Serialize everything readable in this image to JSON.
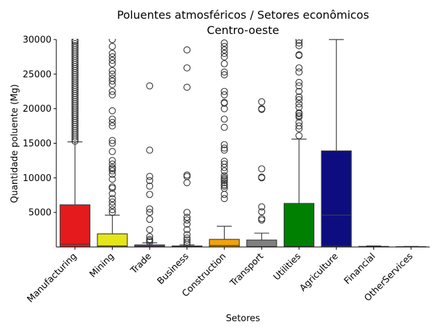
{
  "chart_data": {
    "type": "box",
    "title": "Poluentes atmosféricos / Setores econômicos",
    "subtitle": "Centro-oeste",
    "xlabel": "Setores",
    "ylabel": "Quantidade poluente (Mg)",
    "ylim": [
      0,
      30000
    ],
    "yticks": [
      5000,
      10000,
      15000,
      20000,
      25000,
      30000
    ],
    "grid": false,
    "categories": [
      "Manufacturing",
      "Mining",
      "Trade",
      "Business",
      "Construction",
      "Transport",
      "Utilities",
      "Agriculture",
      "Financial",
      "OtherServices"
    ],
    "boxes": [
      {
        "category": "Manufacturing",
        "color": "#e41a1c",
        "q1": 0,
        "median": 400,
        "q3": 6100,
        "whisker_low": 0,
        "whisker_high": 15200,
        "outliers": [
          15300,
          15600,
          15900,
          16200,
          16500,
          16800,
          17100,
          17400,
          17700,
          18000,
          18300,
          18600,
          18900,
          19200,
          19500,
          19800,
          20100,
          20400,
          20700,
          21000,
          21300,
          21600,
          21900,
          22200,
          22500,
          22800,
          23100,
          23400,
          23700,
          24000,
          24300,
          24600,
          24900,
          25200,
          25500,
          25800,
          26100,
          26400,
          26700,
          27000,
          27300,
          27600,
          27900,
          28200,
          28500,
          28800,
          29100,
          29400,
          29700,
          29900
        ]
      },
      {
        "category": "Mining",
        "color": "#e5e51a",
        "q1": 0,
        "median": 150,
        "q3": 1900,
        "whisker_low": 0,
        "whisker_high": 4600,
        "outliers": [
          5000,
          5400,
          6000,
          6500,
          7000,
          7700,
          8500,
          8700,
          9800,
          10500,
          11000,
          11300,
          11500,
          12000,
          12500,
          13800,
          15000,
          15400,
          17500,
          18000,
          18500,
          19700,
          22000,
          22500,
          23500,
          24000,
          24400,
          25000,
          25500,
          26500,
          27000,
          27500,
          28000,
          29000,
          30000
        ]
      },
      {
        "category": "Trade",
        "color": "#a01bc2",
        "q1": 0,
        "median": 100,
        "q3": 300,
        "whisker_low": 0,
        "whisker_high": 600,
        "outliers": [
          700,
          900,
          1100,
          1500,
          2500,
          4000,
          5000,
          5500,
          7600,
          8800,
          9600,
          10200,
          14000,
          23300
        ]
      },
      {
        "category": "Business",
        "color": "#1f1f7a",
        "q1": 0,
        "median": 50,
        "q3": 150,
        "whisker_low": 0,
        "whisker_high": 300,
        "outliers": [
          400,
          700,
          1000,
          1300,
          1800,
          2500,
          3300,
          3900,
          4300,
          5000,
          9300,
          10200,
          10400,
          23100,
          25900,
          28500
        ]
      },
      {
        "category": "Construction",
        "color": "#f0a30a",
        "q1": 0,
        "median": 200,
        "q3": 1100,
        "whisker_low": 0,
        "whisker_high": 3000,
        "outliers": [
          7000,
          7600,
          8500,
          8800,
          9000,
          9300,
          9600,
          9800,
          10000,
          10300,
          11000,
          11500,
          12000,
          12400,
          14000,
          14300,
          14800,
          17300,
          18500,
          20000,
          20800,
          20900,
          22000,
          22500,
          24900,
          25300,
          26500,
          27500,
          28000,
          28500,
          29000,
          29500
        ]
      },
      {
        "category": "Transport",
        "color": "#808080",
        "q1": 0,
        "median": 50,
        "q3": 1000,
        "whisker_low": 0,
        "whisker_high": 2000,
        "outliers": [
          3900,
          4100,
          5100,
          5800,
          10000,
          10100,
          11300,
          19900,
          20000,
          21000
        ]
      },
      {
        "category": "Utilities",
        "color": "#008000",
        "q1": 0,
        "median": 100,
        "q3": 6300,
        "whisker_low": 0,
        "whisker_high": 15600,
        "outliers": [
          16100,
          17100,
          17500,
          18000,
          18800,
          19000,
          19300,
          19400,
          20200,
          20700,
          21300,
          21700,
          22500,
          23300,
          23800,
          25300,
          25900,
          27700,
          27800,
          29100,
          29500,
          29900
        ]
      },
      {
        "category": "Agriculture",
        "color": "#0d0d80",
        "q1": 100,
        "median": 4600,
        "q3": 13900,
        "whisker_low": 0,
        "whisker_high": 30000,
        "outliers": []
      },
      {
        "category": "Financial",
        "color": "#d9d9d9",
        "q1": 0,
        "median": 20,
        "q3": 80,
        "whisker_low": 0,
        "whisker_high": 150,
        "outliers": []
      },
      {
        "category": "OtherServices",
        "color": "#d9d9d9",
        "q1": 0,
        "median": 10,
        "q3": 40,
        "whisker_low": 0,
        "whisker_high": 80,
        "outliers": []
      }
    ]
  }
}
